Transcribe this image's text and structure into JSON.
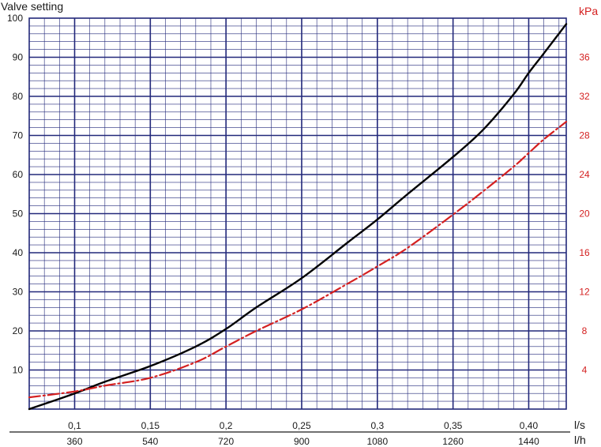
{
  "chart_data": {
    "type": "line",
    "left_axis": {
      "label": "Valve setting",
      "range": [
        0,
        100
      ],
      "ticks": [
        10,
        20,
        30,
        40,
        50,
        60,
        70,
        80,
        90,
        100
      ]
    },
    "right_axis": {
      "label": "kPa",
      "range": [
        0,
        40
      ],
      "ticks": [
        4,
        8,
        12,
        16,
        20,
        24,
        28,
        32,
        36
      ],
      "color": "#d42020"
    },
    "x_axis": {
      "unit": "l/s",
      "range": [
        0.07,
        0.4248
      ],
      "ticks": [
        0.1,
        0.15,
        0.2,
        0.25,
        0.3,
        0.35,
        0.4
      ],
      "tick_labels": [
        "0,1",
        "0,15",
        "0,2",
        "0,25",
        "0,3",
        "0,35",
        "0,40"
      ]
    },
    "x_axis_secondary": {
      "unit": "l/h",
      "ticks": [
        360,
        540,
        720,
        900,
        1080,
        1260,
        1440
      ]
    },
    "grid": true,
    "series": [
      {
        "axis": "left",
        "color": "#000000",
        "style": "solid",
        "x": [
          0.07,
          0.1,
          0.12,
          0.15,
          0.18,
          0.2,
          0.22,
          0.25,
          0.28,
          0.3,
          0.32,
          0.35,
          0.37,
          0.39,
          0.4,
          0.41,
          0.4248
        ],
        "y": [
          0,
          4,
          7,
          11,
          16,
          20.5,
          26,
          33.5,
          42.5,
          48.5,
          55,
          64.5,
          71.5,
          80.5,
          86,
          91,
          98.5
        ]
      },
      {
        "axis": "right",
        "color": "#d42020",
        "style": "dash-dot",
        "x": [
          0.07,
          0.1,
          0.12,
          0.15,
          0.18,
          0.2,
          0.22,
          0.25,
          0.28,
          0.3,
          0.32,
          0.35,
          0.37,
          0.39,
          0.4,
          0.41,
          0.4248
        ],
        "y": [
          1.2,
          1.8,
          2.4,
          3.2,
          4.8,
          6.4,
          8,
          10.2,
          12.8,
          14.6,
          16.5,
          19.9,
          22.3,
          24.8,
          26.2,
          27.6,
          29.4
        ]
      }
    ]
  }
}
